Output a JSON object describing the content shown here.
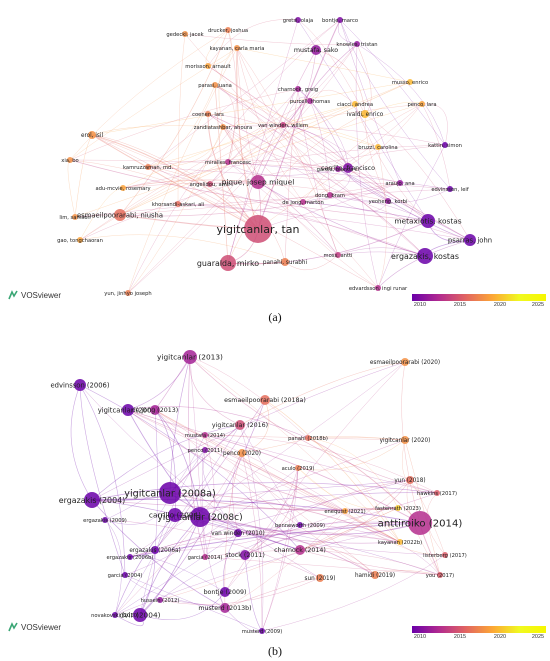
{
  "panel_a": {
    "caption": "(a)",
    "logo": "VOSviewer",
    "colorbar": {
      "ticks": [
        "2010",
        "2015",
        "2020",
        "2025"
      ],
      "range": [
        2010,
        2025
      ]
    },
    "nodes": [
      {
        "id": "yigitcanlar_tan",
        "label": "yigitcanlar, tan",
        "year": 2016,
        "size": 14
      },
      {
        "id": "guaralda",
        "label": "guaralda, mirko",
        "year": 2016,
        "size": 8
      },
      {
        "id": "pique",
        "label": "pique, josep miquel",
        "year": 2014,
        "size": 7
      },
      {
        "id": "esmaeilpoorarabi",
        "label": "esmaeilpoorarabi, niusha",
        "year": 2018,
        "size": 6
      },
      {
        "id": "ergazakis",
        "label": "ergazakis, kostas",
        "year": 2010,
        "size": 8
      },
      {
        "id": "metaxiotis",
        "label": "metaxiotis, kostas",
        "year": 2010,
        "size": 7
      },
      {
        "id": "psarras",
        "label": "psarras, john",
        "year": 2010,
        "size": 6
      },
      {
        "id": "carrillo",
        "label": "carrillo, francisco",
        "year": 2011,
        "size": 5
      },
      {
        "id": "panahi",
        "label": "panahi, surabhi",
        "year": 2019,
        "size": 4
      },
      {
        "id": "mustafa",
        "label": "mustafa, sako",
        "year": 2012,
        "size": 5
      },
      {
        "id": "ivaldi",
        "label": "ivaldi, enrico",
        "year": 2022,
        "size": 4
      },
      {
        "id": "erol",
        "label": "erol, isil",
        "year": 2020,
        "size": 4
      },
      {
        "id": "xia",
        "label": "xia, bo",
        "year": 2020,
        "size": 3
      },
      {
        "id": "lim",
        "label": "lim, samson",
        "year": 2020,
        "size": 3
      },
      {
        "id": "gao",
        "label": "gao, tongchaoran",
        "year": 2021,
        "size": 3
      },
      {
        "id": "yun",
        "label": "yun, jinhyo joseph",
        "year": 2019,
        "size": 3
      },
      {
        "id": "edvardsson",
        "label": "edvardsson, ingi runar",
        "year": 2014,
        "size": 3
      },
      {
        "id": "gedeckijacek",
        "label": "gedecki, jacek",
        "year": 2020,
        "size": 3
      },
      {
        "id": "drucker",
        "label": "drucker, joshua",
        "year": 2019,
        "size": 3
      },
      {
        "id": "kayanan",
        "label": "kayanan, carla maria",
        "year": 2020,
        "size": 3
      },
      {
        "id": "morisson",
        "label": "morisson, arnault",
        "year": 2021,
        "size": 3
      },
      {
        "id": "penco",
        "label": "penco, lara",
        "year": 2021,
        "size": 3
      },
      {
        "id": "musso",
        "label": "musso, enrico",
        "year": 2022,
        "size": 3
      },
      {
        "id": "bontje",
        "label": "bontje, marco",
        "year": 2011,
        "size": 3
      },
      {
        "id": "gretsi",
        "label": "gretsi, olaja",
        "year": 2011,
        "size": 3
      },
      {
        "id": "knowles",
        "label": "knowles, tristan",
        "year": 2012,
        "size": 3
      },
      {
        "id": "parasi",
        "label": "parasi, juana",
        "year": 2020,
        "size": 3
      },
      {
        "id": "charnock",
        "label": "charnock, greig",
        "year": 2013,
        "size": 3
      },
      {
        "id": "purcell",
        "label": "purcell, thomas",
        "year": 2013,
        "size": 3
      },
      {
        "id": "ciacci",
        "label": "ciacci, andrea",
        "year": 2022,
        "size": 3
      },
      {
        "id": "coenen",
        "label": "coenen, lars",
        "year": 2019,
        "size": 3
      },
      {
        "id": "zandiatashbar",
        "label": "zandiatashbar, ahoura",
        "year": 2020,
        "size": 3
      },
      {
        "id": "vanwinden",
        "label": "van winden, willem",
        "year": 2015,
        "size": 3
      },
      {
        "id": "bruzzi",
        "label": "bruzzi, carolina",
        "year": 2022,
        "size": 3
      },
      {
        "id": "kamruzzaman",
        "label": "kamruzzaman, md.",
        "year": 2019,
        "size": 3
      },
      {
        "id": "miralles",
        "label": "miralles, francesc",
        "year": 2014,
        "size": 3
      },
      {
        "id": "adumcvie",
        "label": "adu-mcvie, rosemary",
        "year": 2021,
        "size": 3
      },
      {
        "id": "angelidou",
        "label": "angelidou, amir",
        "year": 2016,
        "size": 3
      },
      {
        "id": "khorsandi",
        "label": "khorsandi-askari, ali",
        "year": 2018,
        "size": 3
      },
      {
        "id": "dejong",
        "label": "de jong, marton",
        "year": 2014,
        "size": 3
      },
      {
        "id": "garcia",
        "label": "garcia, blanca c.",
        "year": 2012,
        "size": 3
      },
      {
        "id": "kattin",
        "label": "kattin, simon",
        "year": 2010,
        "size": 3
      },
      {
        "id": "edvinsson",
        "label": "edvinsson, leif",
        "year": 2010,
        "size": 3
      },
      {
        "id": "arauio",
        "label": "araujo, ana",
        "year": 2012,
        "size": 3
      },
      {
        "id": "yeoheng",
        "label": "yeoheng, korbi",
        "year": 2012,
        "size": 3
      },
      {
        "id": "dong",
        "label": "dong, bram",
        "year": 2014,
        "size": 3
      },
      {
        "id": "moss",
        "label": "moss, antti",
        "year": 2015,
        "size": 3
      }
    ]
  },
  "panel_b": {
    "caption": "(b)",
    "logo": "VOSviewer",
    "colorbar": {
      "ticks": [
        "2010",
        "2015",
        "2020",
        "2025"
      ],
      "range": [
        2010,
        2025
      ]
    },
    "nodes": [
      {
        "id": "yig2008a",
        "label": "yigitcanlar (2008a)",
        "year": 2008,
        "size": 11
      },
      {
        "id": "yig2008c",
        "label": "yigitcanlar (2008c)",
        "year": 2008,
        "size": 10
      },
      {
        "id": "ant2014",
        "label": "anttiroiko (2014)",
        "year": 2014,
        "size": 12
      },
      {
        "id": "erg2004",
        "label": "ergazakis (2004)",
        "year": 2004,
        "size": 8
      },
      {
        "id": "car2004",
        "label": "carrillo (2004)",
        "year": 2004,
        "size": 7
      },
      {
        "id": "dvir2004",
        "label": "dvir (2004)",
        "year": 2004,
        "size": 7
      },
      {
        "id": "yig2013",
        "label": "yigitcanlar (2013)",
        "year": 2013,
        "size": 7
      },
      {
        "id": "yig2009",
        "label": "yigitcanlar (2009)",
        "year": 2009,
        "size": 6
      },
      {
        "id": "edv2006",
        "label": "edvinsson (2006)",
        "year": 2006,
        "size": 6
      },
      {
        "id": "dej2013",
        "label": "de jong (2013)",
        "year": 2013,
        "size": 5
      },
      {
        "id": "yig2016",
        "label": "yigitcanlar (2016)",
        "year": 2016,
        "size": 5
      },
      {
        "id": "esm2018a",
        "label": "esmaeilpoorarabi (2018a)",
        "year": 2018,
        "size": 5
      },
      {
        "id": "esm2020",
        "label": "esmaeilpoorarabi (2020)",
        "year": 2020,
        "size": 4
      },
      {
        "id": "yig2020",
        "label": "yigitcanlar (2020)",
        "year": 2020,
        "size": 4
      },
      {
        "id": "pen2020",
        "label": "penco (2020)",
        "year": 2020,
        "size": 4
      },
      {
        "id": "acu2019",
        "label": "aculo (2019)",
        "year": 2019,
        "size": 3
      },
      {
        "id": "yun2018",
        "label": "yun (2018)",
        "year": 2018,
        "size": 4
      },
      {
        "id": "fas2023",
        "label": "fastenrath (2023)",
        "year": 2023,
        "size": 3
      },
      {
        "id": "haw2017",
        "label": "hawkins (2017)",
        "year": 2017,
        "size": 3
      },
      {
        "id": "ene2021",
        "label": "enequist (2021)",
        "year": 2021,
        "size": 3
      },
      {
        "id": "kay2022b",
        "label": "kayanan (2022b)",
        "year": 2022,
        "size": 3
      },
      {
        "id": "lis2017",
        "label": "listerberg (2017)",
        "year": 2017,
        "size": 3
      },
      {
        "id": "you2017",
        "label": "you (2017)",
        "year": 2017,
        "size": 3
      },
      {
        "id": "ham2019",
        "label": "hamidi (2019)",
        "year": 2019,
        "size": 4
      },
      {
        "id": "sun2019",
        "label": "sun (2019)",
        "year": 2019,
        "size": 4
      },
      {
        "id": "mus2013b",
        "label": "musterd (2013b)",
        "year": 2013,
        "size": 5
      },
      {
        "id": "bon2009",
        "label": "bontje (2009)",
        "year": 2009,
        "size": 5
      },
      {
        "id": "cha2014",
        "label": "charnock (2014)",
        "year": 2014,
        "size": 5
      },
      {
        "id": "sto2011",
        "label": "stock (2011)",
        "year": 2011,
        "size": 5
      },
      {
        "id": "van2010",
        "label": "van winden (2010)",
        "year": 2010,
        "size": 4
      },
      {
        "id": "gar2014",
        "label": "garcia (2014)",
        "year": 2014,
        "size": 3
      },
      {
        "id": "erg2006a",
        "label": "ergazakis (2006a)",
        "year": 2006,
        "size": 4
      },
      {
        "id": "erg2006b",
        "label": "ergazakis (2006b)",
        "year": 2006,
        "size": 3
      },
      {
        "id": "erg2009",
        "label": "ergazakis (2009)",
        "year": 2009,
        "size": 3
      },
      {
        "id": "gar2004",
        "label": "garcia (2004)",
        "year": 2004,
        "size": 3
      },
      {
        "id": "pen2011",
        "label": "penco (2011)",
        "year": 2011,
        "size": 3
      },
      {
        "id": "ben2009",
        "label": "benneworth (2009)",
        "year": 2009,
        "size": 3
      },
      {
        "id": "pan2018b",
        "label": "panahi (2018b)",
        "year": 2018,
        "size": 3
      },
      {
        "id": "mus2009",
        "label": "musterd (2009)",
        "year": 2009,
        "size": 3
      },
      {
        "id": "hus2012",
        "label": "hussein (2012)",
        "year": 2012,
        "size": 3
      },
      {
        "id": "nov2010",
        "label": "novakovski (2010)",
        "year": 2010,
        "size": 3
      },
      {
        "id": "mus2014",
        "label": "mustafa (2014)",
        "year": 2014,
        "size": 3
      }
    ]
  }
}
